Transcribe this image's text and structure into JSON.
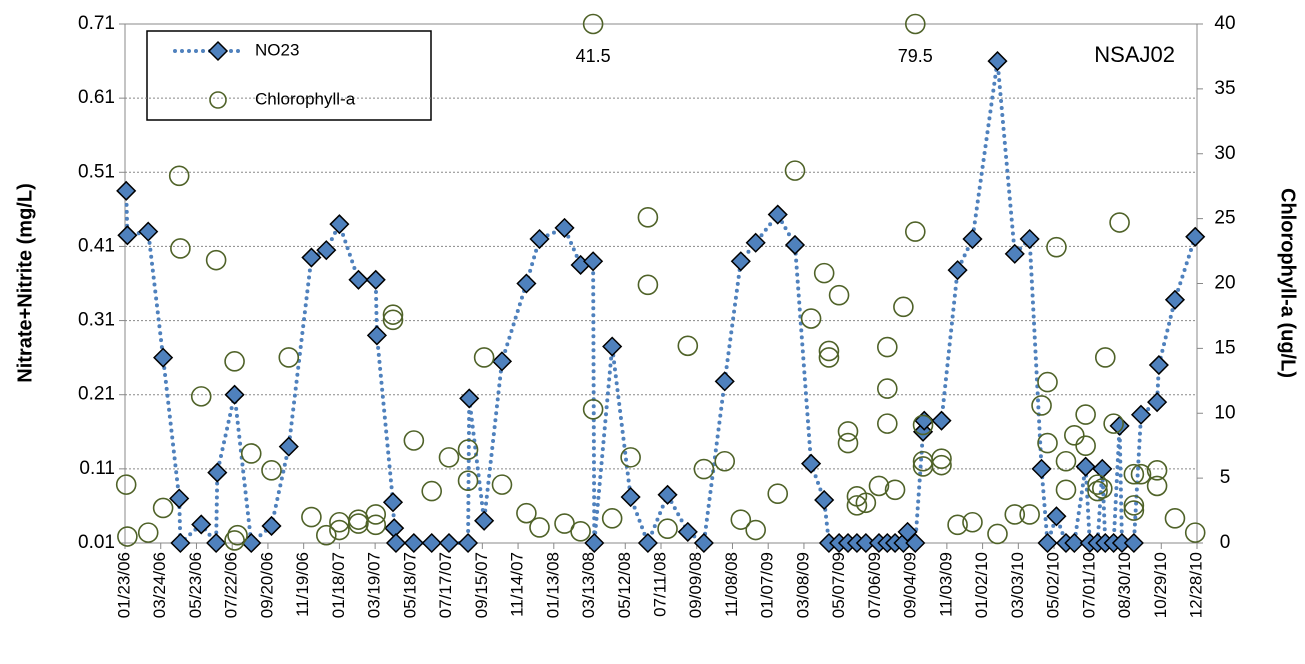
{
  "chart_data": {
    "type": "line",
    "label": "NSAJ02",
    "y_label": "Nitrate+Nitrite (mg/L)",
    "y2_label": "Chlorophyll-a (ug/L)",
    "xlim": [
      "01/23/06",
      "12/28/10"
    ],
    "xticks": [
      "01/23/06",
      "03/24/06",
      "05/23/06",
      "07/22/06",
      "09/20/06",
      "11/19/06",
      "01/18/07",
      "03/19/07",
      "05/18/07",
      "07/17/07",
      "09/15/07",
      "11/14/07",
      "01/13/08",
      "03/13/08",
      "05/12/08",
      "07/11/08",
      "09/09/08",
      "11/08/08",
      "01/07/09",
      "03/08/09",
      "05/07/09",
      "07/06/09",
      "09/04/09",
      "11/03/09",
      "01/02/10",
      "03/03/10",
      "05/02/10",
      "07/01/10",
      "08/30/10",
      "10/29/10",
      "12/28/10"
    ],
    "ylim": [
      0.01,
      0.71
    ],
    "yticks": [
      0.01,
      0.11,
      0.21,
      0.31,
      0.41,
      0.51,
      0.61,
      0.71
    ],
    "y2lim": [
      0,
      40
    ],
    "y2ticks": [
      0,
      5,
      10,
      15,
      20,
      25,
      30,
      35,
      40
    ],
    "grid": true,
    "legend": "upper left",
    "annotations": [
      {
        "text": "41.5",
        "x": "03/19/08"
      },
      {
        "text": "79.5",
        "x": "09/11/09"
      }
    ],
    "series": [
      {
        "name": "NO23",
        "color": "#4f81bd",
        "marker": "diamond",
        "x": [
          "01/25/06",
          "01/27/06",
          "03/03/06",
          "03/28/06",
          "04/24/06",
          "04/26/06",
          "05/31/06",
          "06/25/06",
          "06/27/06",
          "07/26/06",
          "08/23/06",
          "09/26/06",
          "10/25/06",
          "12/02/06",
          "12/27/06",
          "01/18/07",
          "02/19/07",
          "03/20/07",
          "03/22/07",
          "04/18/07",
          "04/20/07",
          "04/23/07",
          "05/23/07",
          "06/22/07",
          "07/21/07",
          "08/22/07",
          "08/24/07",
          "09/18/07",
          "10/18/07",
          "11/28/07",
          "12/20/07",
          "01/31/08",
          "02/27/08",
          "03/19/08",
          "03/21/08",
          "04/20/08",
          "05/21/08",
          "06/19/08",
          "07/22/08",
          "08/25/08",
          "09/21/08",
          "10/26/08",
          "11/22/08",
          "12/17/08",
          "01/23/09",
          "02/21/09",
          "03/20/09",
          "04/11/09",
          "04/19/09",
          "05/06/09",
          "05/21/09",
          "06/05/09",
          "06/20/09",
          "07/12/09",
          "07/26/09",
          "08/08/09",
          "08/22/09",
          "08/29/09",
          "09/11/09",
          "09/24/09",
          "09/26/09",
          "10/25/09",
          "11/21/09",
          "12/16/09",
          "01/27/10",
          "02/25/10",
          "03/22/10",
          "04/11/10",
          "04/21/10",
          "05/06/10",
          "05/22/10",
          "06/05/10",
          "06/24/10",
          "07/01/10",
          "07/14/10",
          "07/22/10",
          "07/27/10",
          "08/10/10",
          "08/20/10",
          "08/24/10",
          "09/13/10",
          "09/25/10",
          "10/22/10",
          "10/25/10",
          "11/21/10",
          "12/25/10"
        ],
        "values": [
          0.485,
          0.425,
          0.43,
          0.26,
          0.07,
          0.01,
          0.035,
          0.01,
          0.105,
          0.21,
          0.01,
          0.033,
          0.14,
          0.395,
          0.405,
          0.44,
          0.365,
          0.365,
          0.29,
          0.065,
          0.03,
          0.01,
          0.01,
          0.01,
          0.01,
          0.01,
          0.205,
          0.04,
          0.255,
          0.36,
          0.42,
          0.435,
          0.385,
          0.39,
          0.01,
          0.275,
          0.072,
          0.01,
          0.075,
          0.025,
          0.01,
          0.228,
          0.39,
          0.415,
          0.453,
          0.412,
          0.117,
          0.068,
          0.01,
          0.01,
          0.01,
          0.01,
          0.01,
          0.01,
          0.01,
          0.01,
          0.01,
          0.025,
          0.01,
          0.16,
          0.175,
          0.175,
          0.378,
          0.42,
          0.66,
          0.4,
          0.42,
          0.11,
          0.01,
          0.046,
          0.01,
          0.01,
          0.113,
          0.01,
          0.01,
          0.11,
          0.01,
          0.01,
          0.168,
          0.01,
          0.01,
          0.183,
          0.2,
          0.25,
          0.338,
          0.423
        ]
      },
      {
        "name": "Chlorophyll-a",
        "color": "#4f6228",
        "marker": "circle",
        "axis": "y2",
        "x": [
          "01/25/06",
          "01/27/06",
          "03/03/06",
          "03/28/06",
          "04/24/06",
          "04/26/06",
          "05/31/06",
          "06/25/06",
          "07/26/06",
          "07/26/06",
          "07/31/06",
          "08/23/06",
          "09/26/06",
          "10/25/06",
          "12/02/06",
          "12/27/06",
          "01/18/07",
          "01/18/07",
          "02/19/07",
          "02/19/07",
          "03/20/07",
          "03/20/07",
          "04/18/07",
          "04/18/07",
          "05/23/07",
          "06/22/07",
          "07/21/07",
          "08/22/07",
          "08/22/07",
          "09/18/07",
          "10/18/07",
          "11/28/07",
          "12/20/07",
          "01/31/08",
          "02/27/08",
          "03/19/08",
          "03/19/08",
          "04/20/08",
          "05/21/08",
          "06/19/08",
          "06/19/08",
          "07/22/08",
          "08/25/08",
          "09/21/08",
          "10/26/08",
          "11/22/08",
          "12/17/08",
          "01/23/09",
          "02/21/09",
          "03/20/09",
          "04/11/09",
          "04/19/09",
          "04/19/09",
          "05/06/09",
          "05/21/09",
          "05/21/09",
          "06/05/09",
          "06/05/09",
          "06/20/09",
          "07/12/09",
          "07/26/09",
          "07/26/09",
          "07/26/09",
          "08/08/09",
          "08/22/09",
          "09/11/09",
          "09/11/09",
          "09/24/09",
          "09/24/09",
          "09/24/09",
          "10/25/09",
          "10/25/09",
          "11/21/09",
          "12/16/09",
          "01/27/10",
          "02/25/10",
          "03/22/10",
          "04/11/10",
          "04/21/10",
          "04/21/10",
          "05/06/10",
          "05/22/10",
          "05/22/10",
          "06/05/10",
          "06/24/10",
          "06/24/10",
          "07/14/10",
          "07/14/10",
          "07/22/10",
          "07/27/10",
          "08/10/10",
          "08/20/10",
          "09/13/10",
          "09/13/10",
          "09/13/10",
          "09/25/10",
          "10/22/10",
          "10/22/10",
          "11/21/10",
          "12/25/10"
        ],
        "values": [
          4.5,
          0.5,
          0.8,
          2.7,
          28.3,
          22.7,
          11.3,
          21.8,
          14.0,
          0.2,
          0.6,
          6.9,
          5.6,
          14.3,
          2.0,
          0.6,
          1.6,
          1.0,
          1.8,
          1.5,
          2.2,
          1.4,
          17.6,
          17.2,
          7.9,
          4.0,
          6.6,
          7.2,
          4.8,
          14.3,
          4.5,
          2.3,
          1.2,
          1.5,
          0.9,
          41.5,
          10.3,
          1.9,
          6.6,
          25.1,
          19.9,
          1.1,
          15.2,
          5.7,
          6.3,
          1.8,
          1.0,
          3.8,
          28.7,
          17.3,
          20.8,
          14.8,
          14.3,
          19.1,
          8.6,
          7.7,
          3.6,
          2.9,
          3.1,
          4.4,
          15.1,
          11.9,
          9.2,
          4.1,
          18.2,
          79.5,
          24.0,
          9.1,
          6.3,
          5.9,
          6.5,
          6.0,
          1.4,
          1.6,
          0.7,
          2.2,
          2.2,
          10.6,
          12.4,
          7.7,
          22.8,
          4.1,
          6.3,
          8.3,
          9.9,
          7.5,
          4.5,
          4.0,
          4.2,
          14.3,
          9.2,
          24.7,
          5.3,
          2.5,
          2.9,
          5.3,
          5.6,
          4.4,
          1.9,
          0.8
        ]
      }
    ]
  }
}
